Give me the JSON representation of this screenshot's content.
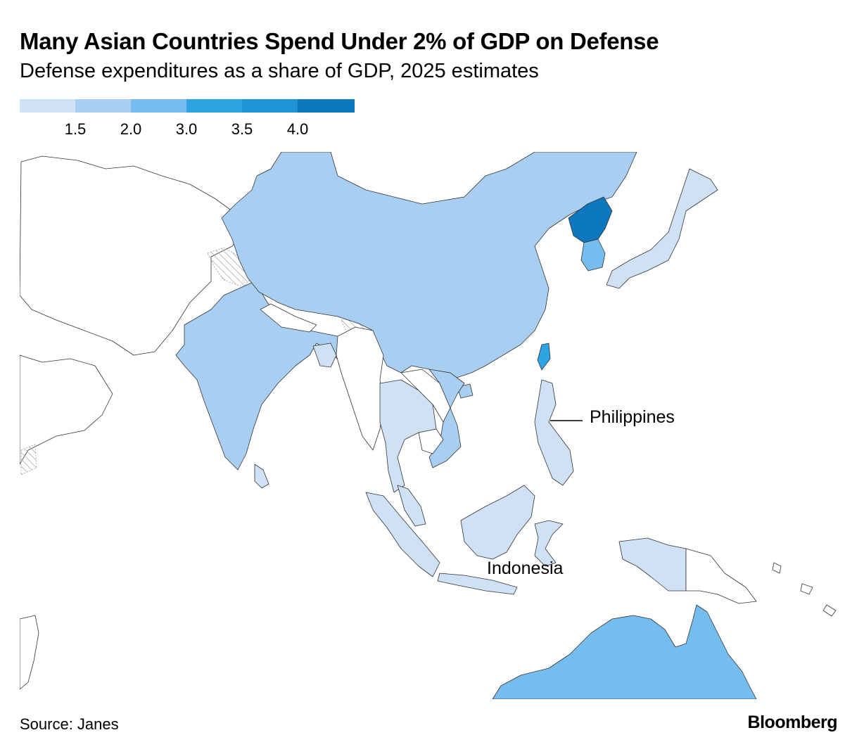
{
  "header": {
    "title": "Many Asian Countries Spend Under 2% of GDP on Defense",
    "subtitle": "Defense expenditures as a share of GDP, 2025 estimates"
  },
  "legend": {
    "bins": [
      {
        "color": "#cfe1f4",
        "tick": ""
      },
      {
        "color": "#a8cff2",
        "tick": "1.5"
      },
      {
        "color": "#74bdee",
        "tick": "2.0"
      },
      {
        "color": "#2ea4e2",
        "tick": "3.0"
      },
      {
        "color": "#1e93d6",
        "tick": "3.5"
      },
      {
        "color": "#0d78bd",
        "tick": "4.0"
      }
    ]
  },
  "colors": {
    "land_nodata": "#ffffff",
    "border": "#333333",
    "hatched": "#bdbdbd"
  },
  "labels": {
    "philippines": "Philippines",
    "indonesia": "Indonesia"
  },
  "footer": {
    "source": "Source: Janes",
    "brand": "Bloomberg"
  }
}
